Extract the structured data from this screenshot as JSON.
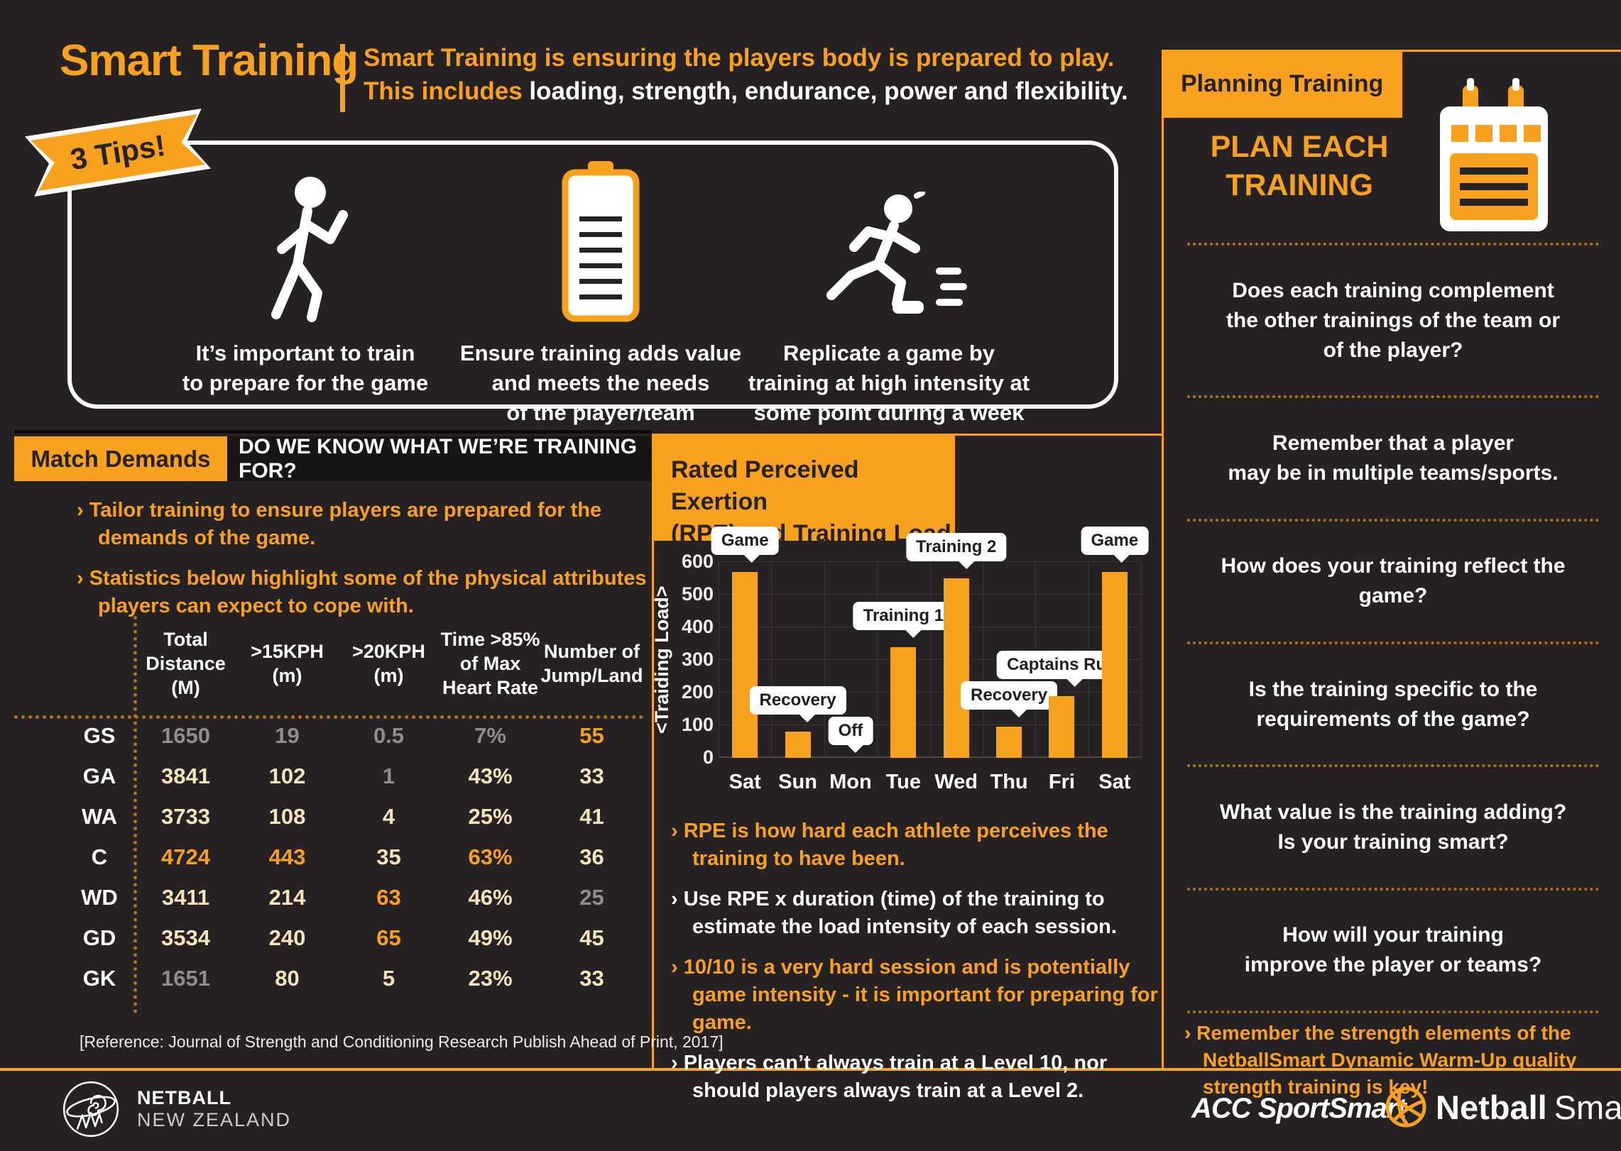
{
  "page": {
    "background": "#262223",
    "accent": "#F7A11F"
  },
  "header": {
    "title": "Smart Training",
    "subtitle_line1": "Smart Training is ensuring the players body is prepared to play.",
    "subtitle_line2_orange": "This includes ",
    "subtitle_line2_white": "loading, strength, endurance, power and flexibility."
  },
  "tips": {
    "badge": "3 Tips!",
    "items": [
      {
        "icon": "stretching-person-icon",
        "caption": "It’s important to train\nto prepare for the game"
      },
      {
        "icon": "clipboard-icon",
        "caption": "Ensure training adds value\nand meets the needs\nof the player/team"
      },
      {
        "icon": "running-person-icon",
        "caption": "Replicate a game by\ntraining at high intensity at\nsome point during a week"
      }
    ]
  },
  "match_demands": {
    "heading": "Match Demands",
    "subheading": "DO WE KNOW WHAT WE’RE TRAINING FOR?",
    "bullets": [
      {
        "text": "Tailor training to ensure players are prepared for the demands of the game.",
        "tone": "orange"
      },
      {
        "text": "Statistics below highlight some of the physical attributes players can expect to cope with.",
        "tone": "orange"
      }
    ],
    "table": {
      "columns": [
        "Total\nDistance\n(M)",
        ">15KPH\n(m)",
        ">20KPH\n(m)",
        "Time >85%\nof Max\nHeart Rate",
        "Number of\nJump/Land"
      ],
      "rows": [
        {
          "label": "GS",
          "cells": [
            {
              "v": "1650",
              "tone": "dim"
            },
            {
              "v": "19",
              "tone": "dim"
            },
            {
              "v": "0.5",
              "tone": "dim"
            },
            {
              "v": "7%",
              "tone": "dim"
            },
            {
              "v": "55",
              "tone": "hot"
            }
          ]
        },
        {
          "label": "GA",
          "cells": [
            {
              "v": "3841",
              "tone": "cream"
            },
            {
              "v": "102",
              "tone": "cream"
            },
            {
              "v": "1",
              "tone": "dim"
            },
            {
              "v": "43%",
              "tone": "cream"
            },
            {
              "v": "33",
              "tone": "cream"
            }
          ]
        },
        {
          "label": "WA",
          "cells": [
            {
              "v": "3733",
              "tone": "cream"
            },
            {
              "v": "108",
              "tone": "cream"
            },
            {
              "v": "4",
              "tone": "cream"
            },
            {
              "v": "25%",
              "tone": "cream"
            },
            {
              "v": "41",
              "tone": "cream"
            }
          ]
        },
        {
          "label": "C",
          "cells": [
            {
              "v": "4724",
              "tone": "hot"
            },
            {
              "v": "443",
              "tone": "hot"
            },
            {
              "v": "35",
              "tone": "cream"
            },
            {
              "v": "63%",
              "tone": "hot"
            },
            {
              "v": "36",
              "tone": "cream"
            }
          ]
        },
        {
          "label": "WD",
          "cells": [
            {
              "v": "3411",
              "tone": "cream"
            },
            {
              "v": "214",
              "tone": "cream"
            },
            {
              "v": "63",
              "tone": "hot"
            },
            {
              "v": "46%",
              "tone": "cream"
            },
            {
              "v": "25",
              "tone": "dim"
            }
          ]
        },
        {
          "label": "GD",
          "cells": [
            {
              "v": "3534",
              "tone": "cream"
            },
            {
              "v": "240",
              "tone": "cream"
            },
            {
              "v": "65",
              "tone": "hot"
            },
            {
              "v": "49%",
              "tone": "cream"
            },
            {
              "v": "45",
              "tone": "cream"
            }
          ]
        },
        {
          "label": "GK",
          "cells": [
            {
              "v": "1651",
              "tone": "dim"
            },
            {
              "v": "80",
              "tone": "cream"
            },
            {
              "v": "5",
              "tone": "cream"
            },
            {
              "v": "23%",
              "tone": "cream"
            },
            {
              "v": "33",
              "tone": "cream"
            }
          ]
        }
      ]
    },
    "reference": "[Reference: Journal of Strength and Conditioning Research Publish Ahead of Print, 2017]"
  },
  "rpe": {
    "heading": "Rated Perceived Exertion\n(RPE) and Training Load",
    "bullets": [
      {
        "text": "RPE is how hard each athlete perceives the training to have been.",
        "tone": "orange"
      },
      {
        "text": "Use RPE x duration (time) of the training to estimate the load intensity of each session.",
        "tone": "white"
      },
      {
        "text": "10/10 is a very hard session and is potentially game intensity - it is important for preparing for game.",
        "tone": "orange"
      },
      {
        "text": "Players can’t always train at a Level 10, nor should players always train at a Level 2.",
        "tone": "white"
      }
    ]
  },
  "chart_data": {
    "type": "bar",
    "title": "Rated Perceived Exertion (RPE) and Training Load",
    "categories": [
      "Sat",
      "Sun",
      "Mon",
      "Tue",
      "Wed",
      "Thu",
      "Fri",
      "Sat"
    ],
    "values": [
      570,
      80,
      0,
      340,
      550,
      95,
      190,
      570
    ],
    "bar_labels": [
      "Game",
      "Recovery",
      "Off",
      "Training 1",
      "Training 2",
      "Recovery",
      "Captains Run",
      "Game"
    ],
    "xlabel": "",
    "ylabel": "<Traiding Load>",
    "yticks": [
      0,
      100,
      200,
      300,
      400,
      500,
      600
    ],
    "ylim": [
      0,
      640
    ],
    "bar_color": "#F7A11F",
    "grid": true,
    "legend": false
  },
  "planning": {
    "heading": "Planning Training",
    "title": "PLAN EACH\nTRAINING",
    "questions": [
      "Does each training complement\nthe other trainings of the team or\nof the player?",
      "Remember that a player\nmay be in multiple teams/sports.",
      "How does your training reflect the game?",
      "Is the training specific to the\nrequirements of the game?",
      "What value is the training adding?\nIs your training smart?",
      "How will your training\nimprove the player or teams?"
    ],
    "note": "Remember the strength elements of the NetballSmart Dynamic Warm-Up quality strength training is key!"
  },
  "footer": {
    "nnz_line1": "NETBALL",
    "nnz_line2": "NEW ZEALAND",
    "acc": "ACC SportSmart",
    "netballsmart_bold": "Netball",
    "netballsmart_light": "Smart"
  }
}
